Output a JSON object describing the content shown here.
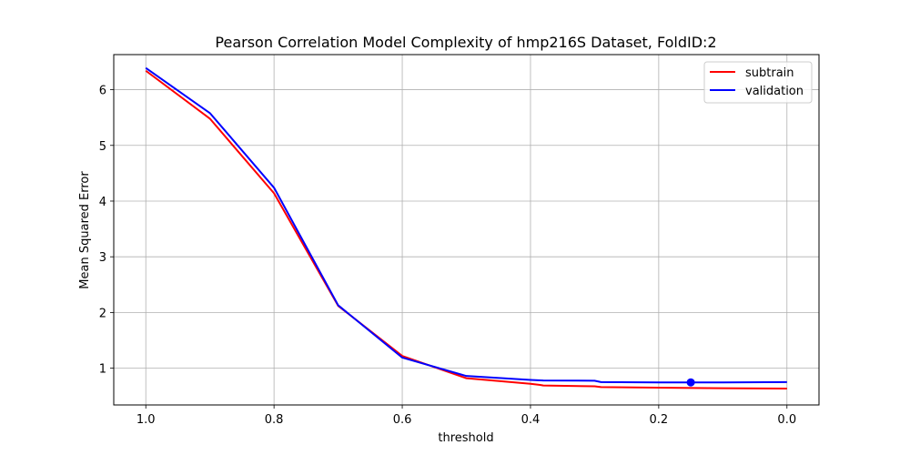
{
  "chart_data": {
    "type": "line",
    "title": "Pearson Correlation Model Complexity of hmp216S Dataset, FoldID:2",
    "xlabel": "threshold",
    "ylabel": "Mean Squared Error",
    "xlim": [
      1.05,
      -0.05
    ],
    "ylim": [
      0.34,
      6.63
    ],
    "x_inverted": true,
    "grid": true,
    "legend_position": "top-right",
    "xticks": [
      1.0,
      0.8,
      0.6,
      0.4,
      0.2,
      0.0
    ],
    "xtick_labels": [
      "1.0",
      "0.8",
      "0.6",
      "0.4",
      "0.2",
      "0.0"
    ],
    "yticks": [
      1,
      2,
      3,
      4,
      5,
      6
    ],
    "ytick_labels": [
      "1",
      "2",
      "3",
      "4",
      "5",
      "6"
    ],
    "series": [
      {
        "name": "subtrain",
        "color": "#ff0000",
        "x": [
          1.0,
          0.9,
          0.8,
          0.7,
          0.6,
          0.5,
          0.4,
          0.385,
          0.38,
          0.3,
          0.29,
          0.2,
          0.1,
          0.0
        ],
        "y": [
          6.34,
          5.48,
          4.14,
          2.12,
          1.22,
          0.82,
          0.72,
          0.7,
          0.69,
          0.675,
          0.66,
          0.65,
          0.64,
          0.635
        ]
      },
      {
        "name": "validation",
        "color": "#0000ff",
        "x": [
          1.0,
          0.9,
          0.8,
          0.7,
          0.6,
          0.5,
          0.4,
          0.38,
          0.3,
          0.29,
          0.2,
          0.1,
          0.0
        ],
        "y": [
          6.39,
          5.58,
          4.24,
          2.13,
          1.19,
          0.86,
          0.79,
          0.78,
          0.775,
          0.75,
          0.745,
          0.745,
          0.75
        ]
      }
    ],
    "markers": [
      {
        "series": "validation",
        "x": 0.15,
        "y": 0.745,
        "color": "#0000ff"
      }
    ]
  }
}
